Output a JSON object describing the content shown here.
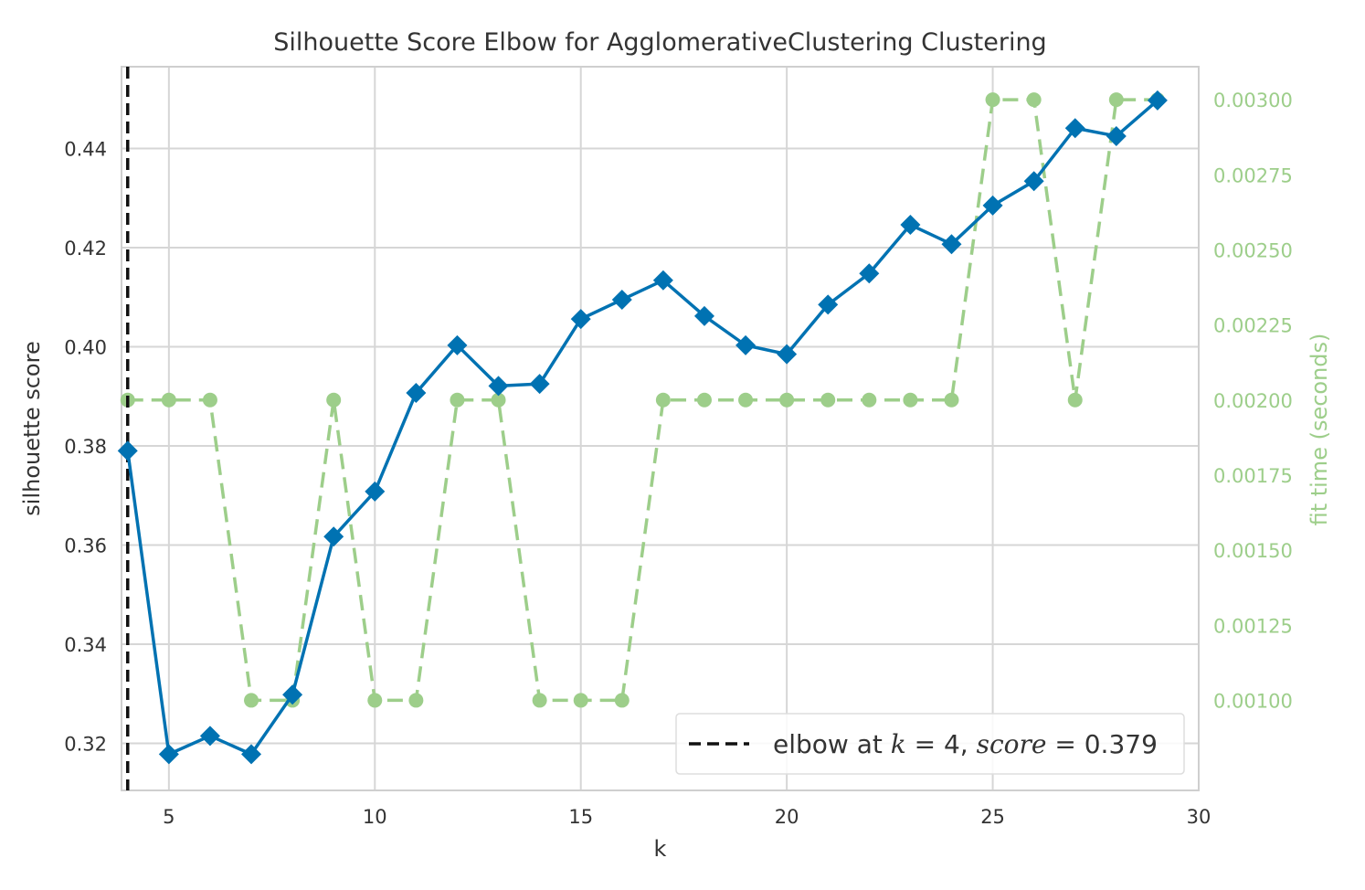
{
  "chart_data": {
    "type": "line",
    "title": "Silhouette Score Elbow for AgglomerativeClustering Clustering",
    "xlabel": "k",
    "ylabel": "silhouette score",
    "y2label": "fit time (seconds)",
    "xlim": [
      3.85,
      30
    ],
    "ylim": [
      0.3105,
      0.4565
    ],
    "y2lim": [
      0.0007,
      0.00311
    ],
    "xticks": [
      5,
      10,
      15,
      20,
      25,
      30
    ],
    "yticks": [
      0.32,
      0.34,
      0.36,
      0.38,
      0.4,
      0.42,
      0.44
    ],
    "ytick_labels": [
      "0.32",
      "0.34",
      "0.36",
      "0.38",
      "0.40",
      "0.42",
      "0.44"
    ],
    "y2ticks": [
      0.001,
      0.00125,
      0.0015,
      0.00175,
      0.002,
      0.00225,
      0.0025,
      0.00275,
      0.003
    ],
    "y2tick_labels": [
      "0.00100",
      "0.00125",
      "0.00150",
      "0.00175",
      "0.00200",
      "0.00225",
      "0.00250",
      "0.00275",
      "0.00300"
    ],
    "grid": true,
    "legend_position": "bottom-right",
    "x": [
      4,
      5,
      6,
      7,
      8,
      9,
      10,
      11,
      12,
      13,
      14,
      15,
      16,
      17,
      18,
      19,
      20,
      21,
      22,
      23,
      24,
      25,
      26,
      27,
      28,
      29
    ],
    "series": [
      {
        "axis": "left",
        "values": [
          0.379,
          0.3178,
          0.3215,
          0.3178,
          0.3298,
          0.3617,
          0.3708,
          0.3907,
          0.4003,
          0.3921,
          0.3925,
          0.4056,
          0.4095,
          0.4134,
          0.4062,
          0.4003,
          0.3985,
          0.4085,
          0.4148,
          0.4246,
          0.4207,
          0.4285,
          0.4334,
          0.4441,
          0.4425,
          0.4497
        ],
        "color": "#0072b2",
        "marker": "diamond",
        "style": "solid"
      },
      {
        "axis": "right",
        "values": [
          0.002,
          0.002,
          0.002,
          0.001,
          0.001,
          0.002,
          0.001,
          0.001,
          0.002,
          0.002,
          0.001,
          0.001,
          0.001,
          0.002,
          0.002,
          0.002,
          0.002,
          0.002,
          0.002,
          0.002,
          0.002,
          0.003,
          0.003,
          0.002,
          0.003,
          0.003
        ],
        "color": "#9dce8a",
        "marker": "circle",
        "style": "dashed"
      }
    ],
    "elbow": {
      "k": 4,
      "score": 0.379,
      "label_prefix": "elbow at ",
      "label_k": "k",
      "label_eq1": " = 4, ",
      "label_score": "score",
      "label_eq2": " = 0.379"
    }
  }
}
